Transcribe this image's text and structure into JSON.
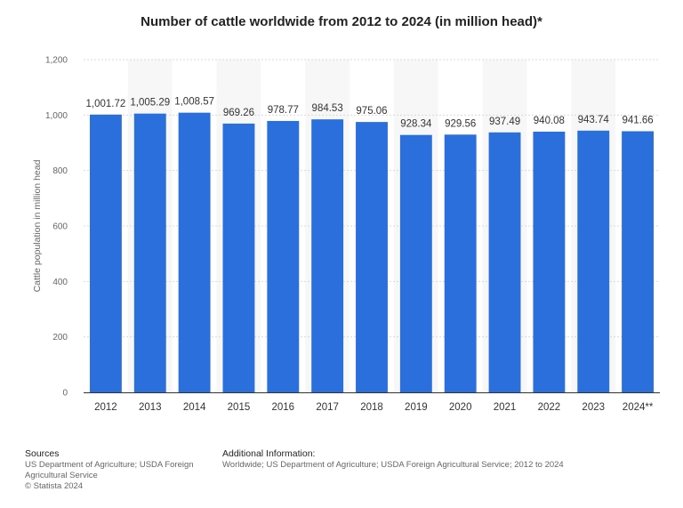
{
  "chart_data": {
    "type": "bar",
    "title": "Number of cattle worldwide from 2012 to 2024 (in million head)*",
    "categories": [
      "2012",
      "2013",
      "2014",
      "2015",
      "2016",
      "2017",
      "2018",
      "2019",
      "2020",
      "2021",
      "2022",
      "2023",
      "2024**"
    ],
    "values": [
      1001.72,
      1005.29,
      1008.57,
      969.26,
      978.77,
      984.53,
      975.06,
      928.34,
      929.56,
      937.49,
      940.08,
      943.74,
      941.66
    ],
    "value_labels": [
      "1,001.72",
      "1,005.29",
      "1,008.57",
      "969.26",
      "978.77",
      "984.53",
      "975.06",
      "928.34",
      "929.56",
      "937.49",
      "940.08",
      "943.74",
      "941.66"
    ],
    "xlabel": "",
    "ylabel": "Cattle population in million head",
    "ylim": [
      0,
      1200
    ],
    "yticks": [
      0,
      200,
      400,
      600,
      800,
      1000,
      1200
    ],
    "ytick_labels": [
      "0",
      "200",
      "400",
      "600",
      "800",
      "1,000",
      "1,200"
    ],
    "bar_color": "#2a6fdb",
    "grid": true
  },
  "footer": {
    "sources_heading": "Sources",
    "sources_lines": [
      "US Department of Agriculture; USDA Foreign",
      "Agricultural Service",
      "© Statista 2024"
    ],
    "additional_heading": "Additional Information:",
    "additional_text": "Worldwide; US Department of Agriculture; USDA Foreign Agricultural Service; 2012 to 2024"
  }
}
